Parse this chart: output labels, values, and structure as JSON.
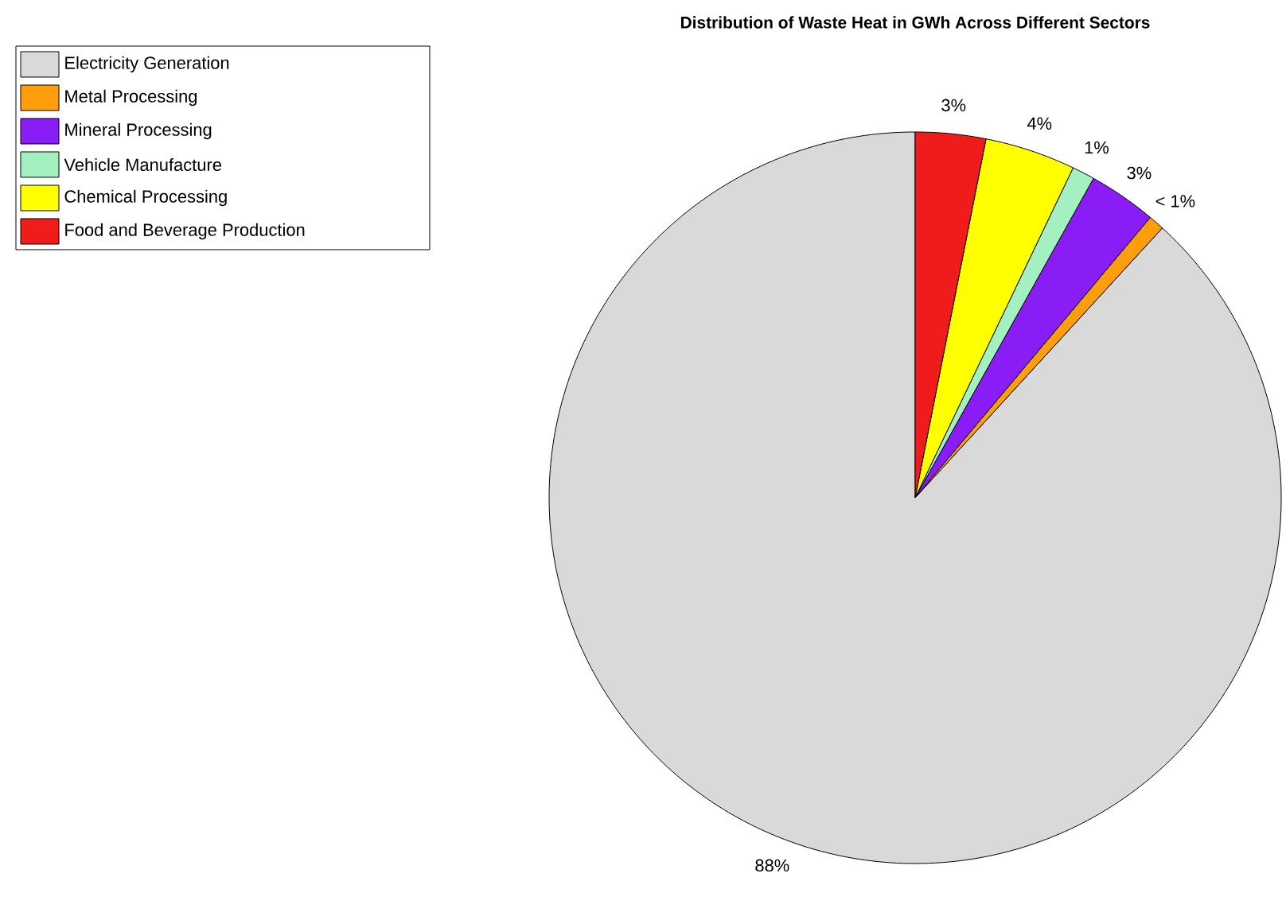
{
  "chart_data": {
    "type": "pie",
    "title": "Distribution of Waste Heat in GWh Across Different Sectors",
    "categories": [
      "Electricity Generation",
      "Metal Processing",
      "Mineral Processing",
      "Vehicle Manufacture",
      "Chemical Processing",
      "Food and Beverage Production"
    ],
    "values": [
      88.2,
      0.7,
      3.0,
      1.0,
      4.0,
      3.1
    ],
    "value_labels": [
      "88%",
      "< 1%",
      "3%",
      "1%",
      "4%",
      "3%"
    ],
    "colors": [
      "#d9d9d9",
      "#ff9e0d",
      "#8a1cf5",
      "#a3f0c0",
      "#ffff00",
      "#f01c1c"
    ],
    "legend": "top left"
  }
}
